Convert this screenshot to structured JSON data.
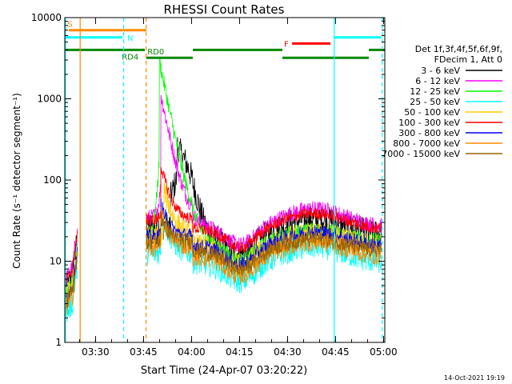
{
  "chart_data": {
    "type": "line",
    "title": "RHESSI Count Rates",
    "xlabel": "Start Time (24-Apr-07 03:20:22)",
    "ylabel": "Count Rate (s⁻¹ detector segment⁻¹)",
    "yscale": "log",
    "ylim": [
      1,
      10000
    ],
    "xlim_minutes": [
      0,
      100
    ],
    "x_ticks": [
      {
        "t": 9.6,
        "label": "03:30"
      },
      {
        "t": 24.6,
        "label": "03:45"
      },
      {
        "t": 39.6,
        "label": "04:00"
      },
      {
        "t": 54.6,
        "label": "04:15"
      },
      {
        "t": 69.6,
        "label": "04:30"
      },
      {
        "t": 84.6,
        "label": "04:45"
      },
      {
        "t": 99.6,
        "label": "05:00"
      }
    ],
    "y_ticks": [
      {
        "v": 1,
        "label": "1"
      },
      {
        "v": 10,
        "label": "10"
      },
      {
        "v": 100,
        "label": "100"
      },
      {
        "v": 1000,
        "label": "1000"
      },
      {
        "v": 10000,
        "label": "10000"
      }
    ],
    "legend_header": [
      "Det 1f,3f,4f,5f,6f,9f,",
      "FDecim 1, Att 0"
    ],
    "series": [
      {
        "name": "3 - 6 keV",
        "color": "#000000",
        "base": 11,
        "peak": 180,
        "peak_t": 35,
        "peak2": 25,
        "noise": 0.35
      },
      {
        "name": "6 - 12 keV",
        "color": "#ff00ff",
        "base": 14,
        "peak": 1100,
        "peak_t": 30,
        "peak2": 35,
        "noise": 0.2
      },
      {
        "name": "12 - 25 keV",
        "color": "#00ff00",
        "base": 9,
        "peak": 3000,
        "peak_t": 29.5,
        "peak2": 14,
        "noise": 0.2
      },
      {
        "name": "25 - 50 keV",
        "color": "#00ffff",
        "base": 5,
        "peak": 30,
        "peak_t": 30,
        "peak2": 11,
        "noise": 0.3
      },
      {
        "name": "50 - 100 keV",
        "color": "#ffcc00",
        "base": 8,
        "peak": 60,
        "peak_t": 31,
        "peak2": 13,
        "noise": 0.3
      },
      {
        "name": "100 - 300 keV",
        "color": "#ff0000",
        "base": 13,
        "peak": 120,
        "peak_t": 30,
        "peak2": 28,
        "noise": 0.15
      },
      {
        "name": "300 - 800 keV",
        "color": "#0000ff",
        "base": 8,
        "peak": 30,
        "peak_t": 30,
        "peak2": 15,
        "noise": 0.2
      },
      {
        "name": "800 - 7000 keV",
        "color": "#ff8800",
        "base": 6,
        "peak": 25,
        "peak_t": 30,
        "peak2": 12,
        "noise": 0.25
      },
      {
        "name": "7000 - 15000 keV",
        "color": "#996600",
        "base": 7,
        "peak": 20,
        "peak_t": 30,
        "peak2": 11,
        "noise": 0.2
      }
    ],
    "flag_bars": [
      {
        "label": "S",
        "color": "#ff8800",
        "value": 7000,
        "segments": [
          [
            1.2,
            25.5
          ]
        ],
        "label_t": 0.8,
        "label_side": "above"
      },
      {
        "label": "N",
        "color": "#00ffff",
        "value": 5700,
        "segments": [
          [
            0,
            18
          ],
          [
            84,
            99
          ]
        ],
        "label_t": 19.5,
        "label_side": "inline"
      },
      {
        "label": "F",
        "color": "#ff0000",
        "value": 4800,
        "segments": [
          [
            71,
            83
          ]
        ],
        "label_t": 68.5,
        "label_side": "inline"
      },
      {
        "label": "RD0",
        "color": "#008800",
        "value": 3200,
        "segments": [
          [
            25.5,
            40
          ],
          [
            68,
            95
          ]
        ],
        "label_t": 25.8,
        "label_side": "above"
      },
      {
        "label": "RD4",
        "color": "#008800",
        "value": 4000,
        "segments": [
          [
            0,
            25
          ],
          [
            40,
            68
          ],
          [
            95,
            100
          ]
        ],
        "label_t": 17.8,
        "label_side": "below"
      }
    ],
    "markers": [
      {
        "t": 0.2,
        "color": "#00ffff",
        "style": "solid"
      },
      {
        "t": 4.8,
        "color": "#ff8800",
        "style": "solid"
      },
      {
        "t": 18.4,
        "color": "#00ffff",
        "style": "dashed"
      },
      {
        "t": 25.4,
        "color": "#ff8800",
        "style": "dashed"
      },
      {
        "t": 84.2,
        "color": "#00ffff",
        "style": "solid"
      },
      {
        "t": 99.2,
        "color": "#00ffff",
        "style": "dashed"
      }
    ],
    "data_gap_minutes": [
      [
        4.0,
        24.0
      ]
    ]
  },
  "footer_timestamp": "14-Oct-2021 19:19"
}
